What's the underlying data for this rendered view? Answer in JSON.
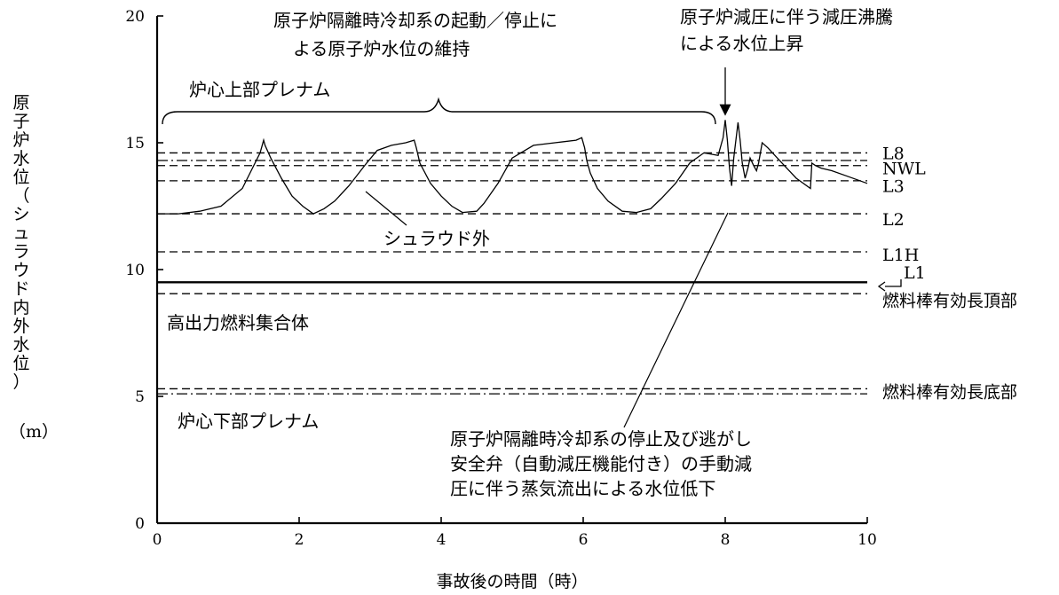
{
  "chart_data": {
    "type": "line",
    "title": "",
    "xlabel": "事故後の時間（時）",
    "ylabel_chars": [
      "原",
      "子",
      "炉",
      "水",
      "位",
      "（",
      "シ",
      "ュ",
      "ラ",
      "ウ",
      "ド",
      "内",
      "外",
      "水",
      "位",
      "）"
    ],
    "ylabel_unit": "（m）",
    "xlim": [
      0,
      10
    ],
    "ylim": [
      0,
      20
    ],
    "xticks": [
      "0",
      "2",
      "4",
      "6",
      "8",
      "10"
    ],
    "yticks": [
      "0",
      "5",
      "10",
      "15",
      "20"
    ],
    "level_lines": [
      {
        "name": "L8",
        "value": 14.6,
        "style": "dash"
      },
      {
        "name": "NWL",
        "value": 14.3,
        "style": "dashdot"
      },
      {
        "name": "NWL-2",
        "value": 14.1,
        "style": "dash"
      },
      {
        "name": "L3",
        "value": 13.5,
        "style": "dash"
      },
      {
        "name": "L2",
        "value": 12.2,
        "style": "dash"
      },
      {
        "name": "L1H",
        "value": 10.7,
        "style": "dash"
      },
      {
        "name": "L1",
        "value": 9.5,
        "style": "solid"
      },
      {
        "name": "燃料棒有効長頂部",
        "value": 9.05,
        "style": "dash"
      },
      {
        "name": "燃料棒有効長底部",
        "value": 5.3,
        "style": "dash"
      },
      {
        "name": "燃料棒有効長底部-2",
        "value": 5.1,
        "style": "dashdot"
      }
    ],
    "level_labels": [
      {
        "text": "L8",
        "value": 14.6
      },
      {
        "text": "NWL",
        "value": 14.0
      },
      {
        "text": "L3",
        "value": 13.3
      },
      {
        "text": "L2",
        "value": 12.0
      },
      {
        "text": "L1H",
        "value": 10.6
      },
      {
        "text": "L1",
        "value": 9.9
      },
      {
        "text": "燃料棒有効長頂部",
        "value": 8.8
      },
      {
        "text": "燃料棒有効長底部",
        "value": 5.2
      }
    ],
    "series": [
      {
        "name": "シュラウド外",
        "x": [
          0,
          0.3,
          0.6,
          0.9,
          1.2,
          1.45,
          1.5,
          1.52,
          1.6,
          1.75,
          1.9,
          2.05,
          2.2,
          2.35,
          2.5,
          2.7,
          2.95,
          3.1,
          3.3,
          3.5,
          3.62,
          3.65,
          3.7,
          3.85,
          4.0,
          4.15,
          4.3,
          4.5,
          4.6,
          4.8,
          5.0,
          5.3,
          5.6,
          5.9,
          5.98,
          6.02,
          6.05,
          6.1,
          6.2,
          6.35,
          6.55,
          6.75,
          6.95,
          7.1,
          7.3,
          7.5,
          7.7,
          7.9,
          7.97,
          8.0,
          8.03,
          8.06,
          8.09,
          8.12,
          8.18,
          8.21,
          8.24,
          8.28,
          8.32,
          8.35,
          8.4,
          8.44,
          8.47,
          8.52,
          8.6,
          8.8,
          9.0,
          9.2,
          9.22,
          9.27,
          9.35,
          9.5,
          9.7,
          10.0
        ],
        "y": [
          12.2,
          12.2,
          12.3,
          12.5,
          13.2,
          14.6,
          15.1,
          14.9,
          14.4,
          13.6,
          12.9,
          12.5,
          12.2,
          12.4,
          12.7,
          13.3,
          14.2,
          14.7,
          14.9,
          15.0,
          15.1,
          14.8,
          14.2,
          13.4,
          12.9,
          12.5,
          12.25,
          12.3,
          12.6,
          13.4,
          14.4,
          14.9,
          15.0,
          15.1,
          15.2,
          14.8,
          14.3,
          13.8,
          13.2,
          12.7,
          12.3,
          12.25,
          12.4,
          12.8,
          13.4,
          14.2,
          14.6,
          14.5,
          15.2,
          15.9,
          15.1,
          14.0,
          13.3,
          14.4,
          15.8,
          15.1,
          14.2,
          13.6,
          14.0,
          14.4,
          14.1,
          13.9,
          14.2,
          15.0,
          14.8,
          14.2,
          13.6,
          13.2,
          14.2,
          14.1,
          14.0,
          13.9,
          13.7,
          13.4
        ]
      }
    ],
    "annotations": [
      {
        "lines": [
          "原子炉隔離時冷却系の起動／停止に",
          "よる原子炉水位の維持"
        ]
      },
      {
        "lines": [
          "原子炉減圧に伴う減圧沸騰",
          "による水位上昇"
        ]
      },
      {
        "lines": [
          "炉心上部プレナム"
        ]
      },
      {
        "lines": [
          "シュラウド外"
        ]
      },
      {
        "lines": [
          "高出力燃料集合体"
        ]
      },
      {
        "lines": [
          "炉心下部プレナム"
        ]
      },
      {
        "lines": [
          "原子炉隔離時冷却系の停止及び逃がし",
          "安全弁（自動減圧機能付き）の手動減",
          "圧に伴う蒸気流出による水位低下"
        ]
      }
    ],
    "grid": false,
    "legend": "none"
  }
}
